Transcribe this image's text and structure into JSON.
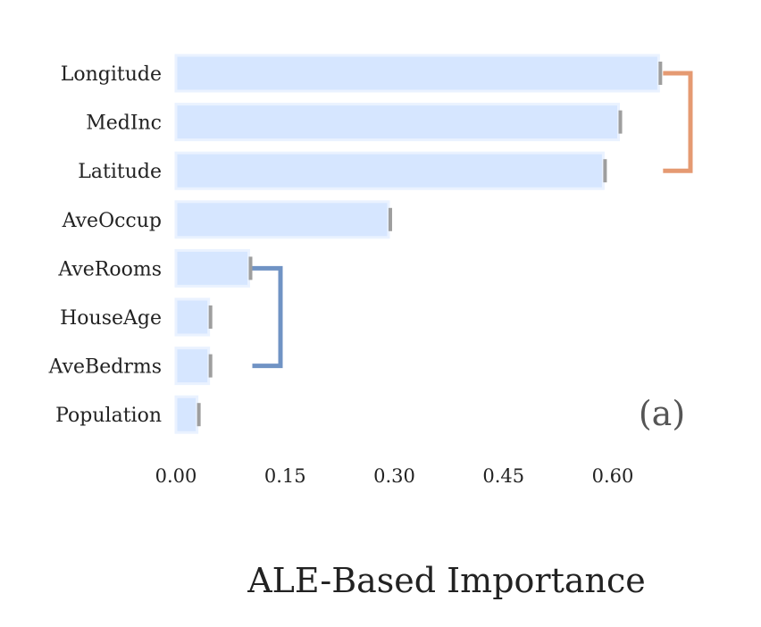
{
  "chart_data": {
    "type": "bar",
    "orientation": "horizontal",
    "categories": [
      "Longitude",
      "MedInc",
      "Latitude",
      "AveOccup",
      "AveRooms",
      "HouseAge",
      "AveBedrms",
      "Population"
    ],
    "values": [
      0.663,
      0.608,
      0.587,
      0.292,
      0.1,
      0.045,
      0.045,
      0.029
    ],
    "xlabel": "ALE-Based Importance",
    "xticks": [
      "0.00",
      "0.15",
      "0.30",
      "0.45",
      "0.60"
    ],
    "xtick_values": [
      0.0,
      0.15,
      0.3,
      0.45,
      0.6
    ],
    "xlim": [
      0,
      0.72
    ],
    "panel_label": "(a)",
    "grid": false,
    "brackets": [
      {
        "from": "Longitude",
        "to": "Latitude",
        "color": "#e59a72"
      },
      {
        "from": "AveRooms",
        "to": "AveBedrms",
        "color": "#7093c4"
      }
    ],
    "colors": {
      "bar": "#d6e6ff",
      "bar_edge": "#eaf2ff",
      "error_cap": "#9e9e9e"
    }
  }
}
